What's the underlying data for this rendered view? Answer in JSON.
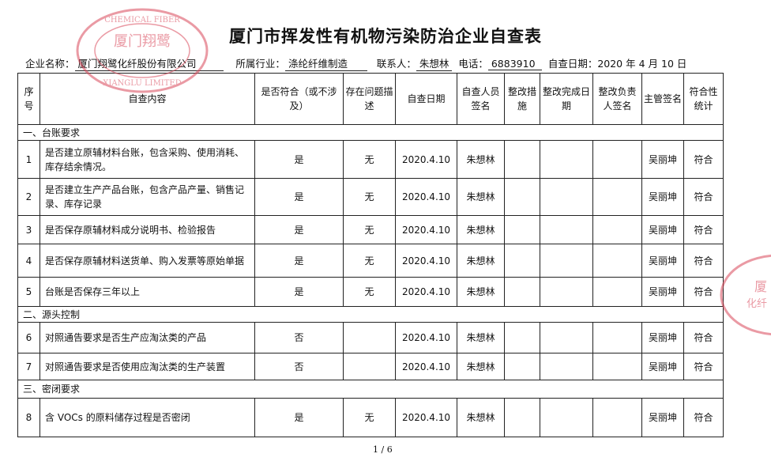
{
  "title": "厦门市挥发性有机物污染防治企业自查表",
  "meta": {
    "company_label": "企业名称：",
    "company": "厦门翔鹭化纤股份有限公司",
    "industry_label": "所属行业：",
    "industry": "涤纶纤维制造",
    "contact_label": "联系人：",
    "contact": "朱想林",
    "phone_label": "电话：",
    "phone": "6883910",
    "date_label": "自查日期：",
    "date": "2020 年 4 月 10 日"
  },
  "headers": [
    "序号",
    "自查内容",
    "是否符合（或不涉及）",
    "存在问题描述",
    "自查日期",
    "自查人员签名",
    "整改措施",
    "整改完成日期",
    "整改负责人签名",
    "主管签名",
    "符合性统计"
  ],
  "sections": [
    "一、台账要求",
    "二、源头控制",
    "三、密闭要求"
  ],
  "rows": [
    {
      "no": "1",
      "content": "是否建立原辅材料台账，包含采购、使用消耗、库存结余情况。",
      "comply": "是",
      "issue": "无",
      "date": "2020.4.10",
      "inspector": "朱想林",
      "measure": "",
      "done": "",
      "owner": "",
      "supervisor": "吴丽坤",
      "stat": "符合"
    },
    {
      "no": "2",
      "content": "是否建立生产产品台账，包含产品产量、销售记录、库存记录",
      "comply": "是",
      "issue": "无",
      "date": "2020.4.10",
      "inspector": "朱想林",
      "measure": "",
      "done": "",
      "owner": "",
      "supervisor": "吴丽坤",
      "stat": "符合"
    },
    {
      "no": "3",
      "content": "是否保存原辅材料成分说明书、检验报告",
      "comply": "是",
      "issue": "无",
      "date": "2020.4.10",
      "inspector": "朱想林",
      "measure": "",
      "done": "",
      "owner": "",
      "supervisor": "吴丽坤",
      "stat": "符合"
    },
    {
      "no": "4",
      "content": "是否保存原辅材料送货单、购入发票等原始单据",
      "comply": "是",
      "issue": "无",
      "date": "2020.4.10",
      "inspector": "朱想林",
      "measure": "",
      "done": "",
      "owner": "",
      "supervisor": "吴丽坤",
      "stat": "符合"
    },
    {
      "no": "5",
      "content": "台账是否保存三年以上",
      "comply": "是",
      "issue": "无",
      "date": "2020.4.10",
      "inspector": "朱想林",
      "measure": "",
      "done": "",
      "owner": "",
      "supervisor": "吴丽坤",
      "stat": "符合"
    },
    {
      "no": "6",
      "content": "对照通告要求是否生产应淘汰类的产品",
      "comply": "否",
      "issue": "",
      "date": "2020.4.10",
      "inspector": "朱想林",
      "measure": "",
      "done": "",
      "owner": "",
      "supervisor": "吴丽坤",
      "stat": "符合"
    },
    {
      "no": "7",
      "content": "对照通告要求是否使用应淘汰类的生产装置",
      "comply": "否",
      "issue": "",
      "date": "2020.4.10",
      "inspector": "朱想林",
      "measure": "",
      "done": "",
      "owner": "",
      "supervisor": "吴丽坤",
      "stat": "符合"
    },
    {
      "no": "8",
      "content": "含 VOCs 的原料储存过程是否密闭",
      "comply": "是",
      "issue": "无",
      "date": "2020.4.10",
      "inspector": "朱想林",
      "measure": "",
      "done": "",
      "owner": "",
      "supervisor": "吴丽坤",
      "stat": "符合"
    }
  ],
  "page": "1 / 6",
  "stamp": {
    "outer": "XIANGLU CHEMICAL FIBER COMPANY LIMITED",
    "inner": "厦门翔鹭",
    "color": "#d9485a"
  }
}
